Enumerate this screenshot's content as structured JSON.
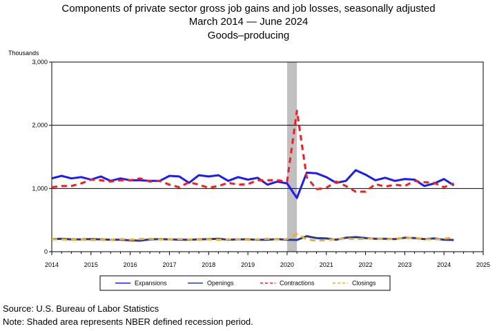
{
  "titles": {
    "line1": "Components of private sector gross job gains and job losses, seasonally adjusted",
    "line2": "March 2014 — June 2024",
    "line3": "Goods–producing"
  },
  "footnotes": {
    "source": "Source: U.S. Bureau of Labor Statistics",
    "note": "Note: Shaded area represents NBER defined recession period."
  },
  "chart_data": {
    "type": "line",
    "title": "Components of private sector gross job gains and job losses, seasonally adjusted",
    "ylabel": "Thousands",
    "xlim": [
      2014,
      2025
    ],
    "ylim": [
      0,
      3000
    ],
    "x_ticks": [
      "2014",
      "2015",
      "2016",
      "2017",
      "2018",
      "2019",
      "2020",
      "2021",
      "2022",
      "2023",
      "2024",
      "2025"
    ],
    "y_ticks": [
      "0",
      "1,000",
      "2,000",
      "3,000"
    ],
    "grid": "horizontal",
    "legend_position": "bottom",
    "recession_band": [
      2020.0,
      2020.25
    ],
    "x": [
      "2014Q1",
      "2014Q2",
      "2014Q3",
      "2014Q4",
      "2015Q1",
      "2015Q2",
      "2015Q3",
      "2015Q4",
      "2016Q1",
      "2016Q2",
      "2016Q3",
      "2016Q4",
      "2017Q1",
      "2017Q2",
      "2017Q3",
      "2017Q4",
      "2018Q1",
      "2018Q2",
      "2018Q3",
      "2018Q4",
      "2019Q1",
      "2019Q2",
      "2019Q3",
      "2019Q4",
      "2020Q1",
      "2020Q2",
      "2020Q3",
      "2020Q4",
      "2021Q1",
      "2021Q2",
      "2021Q3",
      "2021Q4",
      "2022Q1",
      "2022Q2",
      "2022Q3",
      "2022Q4",
      "2023Q1",
      "2023Q2",
      "2023Q3",
      "2023Q4",
      "2024Q1",
      "2024Q2"
    ],
    "series": [
      {
        "name": "Expansions",
        "color": "#1a1aff",
        "dash": "solid",
        "values": [
          1160,
          1200,
          1160,
          1180,
          1140,
          1190,
          1120,
          1160,
          1130,
          1130,
          1120,
          1120,
          1200,
          1190,
          1090,
          1210,
          1190,
          1210,
          1120,
          1180,
          1140,
          1170,
          1060,
          1110,
          1080,
          850,
          1250,
          1240,
          1180,
          1090,
          1120,
          1290,
          1220,
          1130,
          1170,
          1120,
          1150,
          1140,
          1040,
          1080,
          1150,
          1050
        ]
      },
      {
        "name": "Openings",
        "color": "#243a8c",
        "dash": "solid",
        "values": [
          200,
          205,
          195,
          195,
          200,
          195,
          190,
          190,
          180,
          175,
          195,
          200,
          195,
          190,
          190,
          195,
          200,
          205,
          190,
          195,
          195,
          190,
          190,
          200,
          190,
          185,
          245,
          215,
          210,
          190,
          220,
          230,
          215,
          205,
          205,
          200,
          220,
          215,
          200,
          210,
          190,
          185
        ]
      },
      {
        "name": "Contractions",
        "color": "#ff1a1a",
        "dash": "dashed",
        "values": [
          1020,
          1040,
          1040,
          1080,
          1140,
          1130,
          1110,
          1130,
          1130,
          1160,
          1110,
          1120,
          1060,
          1020,
          1100,
          1060,
          1010,
          1040,
          1090,
          1060,
          1070,
          1130,
          1130,
          1130,
          1110,
          2230,
          1180,
          990,
          1010,
          1110,
          1040,
          950,
          950,
          1070,
          1030,
          1060,
          1040,
          1120,
          1100,
          1090,
          1020,
          1080
        ]
      },
      {
        "name": "Closings",
        "color": "#f0a830",
        "dash": "dashed",
        "values": [
          200,
          195,
          190,
          195,
          185,
          190,
          190,
          200,
          190,
          200,
          205,
          195,
          195,
          200,
          195,
          190,
          195,
          190,
          195,
          200,
          190,
          195,
          205,
          195,
          200,
          280,
          195,
          175,
          185,
          200,
          210,
          200,
          205,
          210,
          195,
          205,
          215,
          220,
          200,
          195,
          205,
          225
        ]
      }
    ]
  }
}
